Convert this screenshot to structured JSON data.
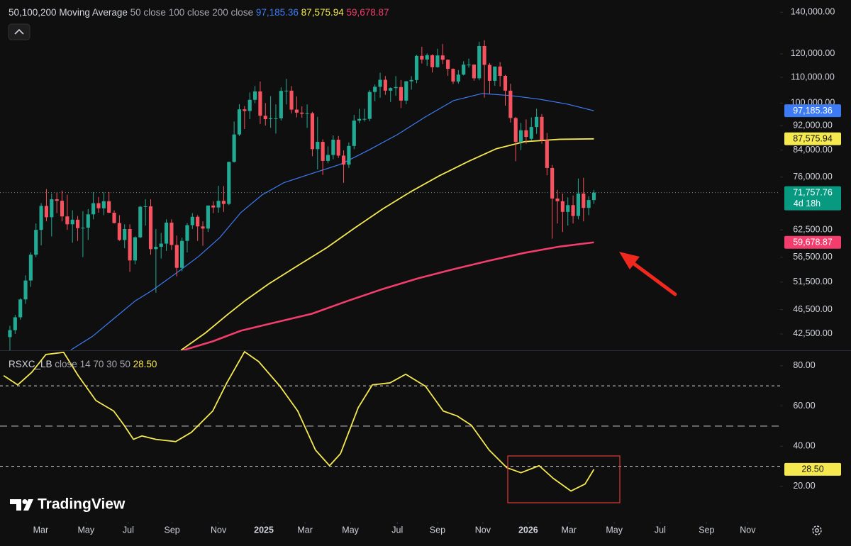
{
  "chart_data": [
    {
      "type": "candlestick",
      "title": "50,100,200 Moving Average",
      "log_scale": true,
      "grid": false,
      "up_color": "#22ab94",
      "down_color": "#f7525f",
      "ylim": [
        40000,
        146500
      ],
      "yticks": [
        {
          "value": 140000,
          "label": "140,000.00"
        },
        {
          "value": 120000,
          "label": "120,000.00"
        },
        {
          "value": 110000,
          "label": "110,000.00"
        },
        {
          "value": 100000,
          "label": "100,000.00"
        },
        {
          "value": 92000,
          "label": "92,000.00"
        },
        {
          "value": 84000,
          "label": "84,000.00"
        },
        {
          "value": 76000,
          "label": "76,000.00"
        },
        {
          "value": 62500,
          "label": "62,500.00"
        },
        {
          "value": 56500,
          "label": "56,500.00"
        },
        {
          "value": 51500,
          "label": "51,500.00"
        },
        {
          "value": 46500,
          "label": "46,500.00"
        },
        {
          "value": 42500,
          "label": "42,500.00"
        }
      ],
      "xlim": [
        -1.9,
        147.7
      ],
      "xticks": [
        {
          "value": 5.9,
          "label": "Mar"
        },
        {
          "value": 14.6,
          "label": "May"
        },
        {
          "value": 22.7,
          "label": "Jul"
        },
        {
          "value": 31.1,
          "label": "Sep"
        },
        {
          "value": 40,
          "label": "Nov"
        },
        {
          "value": 48.7,
          "label": "2025"
        },
        {
          "value": 56.6,
          "label": "Mar"
        },
        {
          "value": 65.3,
          "label": "May"
        },
        {
          "value": 74.3,
          "label": "Jul"
        },
        {
          "value": 82,
          "label": "Sep"
        },
        {
          "value": 90.7,
          "label": "Nov"
        },
        {
          "value": 99.4,
          "label": "2026"
        },
        {
          "value": 107.2,
          "label": "Mar"
        },
        {
          "value": 115.9,
          "label": "May"
        },
        {
          "value": 124.7,
          "label": "Jul"
        },
        {
          "value": 133.6,
          "label": "Sep"
        },
        {
          "value": 141.5,
          "label": "Nov"
        }
      ],
      "ohlc": [
        [
          42000,
          43800,
          39500,
          43100
        ],
        [
          43100,
          45600,
          42500,
          45200
        ],
        [
          45200,
          48500,
          44800,
          48300
        ],
        [
          48300,
          52800,
          47500,
          51800
        ],
        [
          51800,
          57500,
          50600,
          57000
        ],
        [
          57000,
          64000,
          56500,
          62500
        ],
        [
          62500,
          69000,
          59000,
          68300
        ],
        [
          68300,
          72700,
          64500,
          65500
        ],
        [
          65500,
          71500,
          61000,
          70000
        ],
        [
          70000,
          71800,
          66500,
          69600
        ],
        [
          69600,
          72300,
          64500,
          65700
        ],
        [
          65700,
          71200,
          62500,
          63800
        ],
        [
          63800,
          67200,
          59600,
          64900
        ],
        [
          64900,
          65800,
          60000,
          62900
        ],
        [
          62900,
          67000,
          56500,
          63000
        ],
        [
          63000,
          67500,
          60200,
          66200
        ],
        [
          66200,
          71900,
          65000,
          69000
        ],
        [
          69000,
          70600,
          66600,
          67700
        ],
        [
          67700,
          71900,
          66000,
          69500
        ],
        [
          69500,
          71900,
          66500,
          66600
        ],
        [
          66600,
          67200,
          64000,
          64100
        ],
        [
          64100,
          66000,
          60000,
          60200
        ],
        [
          60200,
          63800,
          58400,
          62700
        ],
        [
          62700,
          63800,
          53500,
          55800
        ],
        [
          55800,
          61000,
          55000,
          60800
        ],
        [
          60800,
          68300,
          60600,
          68100
        ],
        [
          68100,
          70000,
          63500,
          68200
        ],
        [
          68200,
          70000,
          57000,
          58200
        ],
        [
          58200,
          62700,
          49500,
          58700
        ],
        [
          58700,
          61800,
          56200,
          59400
        ],
        [
          59400,
          65000,
          57800,
          64200
        ],
        [
          64200,
          65000,
          58000,
          59100
        ],
        [
          59100,
          61200,
          52600,
          54300
        ],
        [
          54300,
          60700,
          53600,
          60000
        ],
        [
          60000,
          64100,
          57500,
          63600
        ],
        [
          63600,
          66500,
          62700,
          65600
        ],
        [
          65600,
          66000,
          60000,
          63300
        ],
        [
          63300,
          64500,
          58900,
          62800
        ],
        [
          62800,
          68400,
          62000,
          68400
        ],
        [
          68400,
          69500,
          66500,
          67900
        ],
        [
          67900,
          73600,
          66600,
          69600
        ],
        [
          69600,
          73500,
          66800,
          68800
        ],
        [
          68800,
          80500,
          68500,
          80400
        ],
        [
          80400,
          93400,
          80200,
          89000
        ],
        [
          89000,
          99600,
          88500,
          97700
        ],
        [
          97700,
          98900,
          90800,
          97100
        ],
        [
          97100,
          104000,
          94200,
          101200
        ],
        [
          101200,
          106500,
          99900,
          104400
        ],
        [
          104400,
          108300,
          92500,
          95400
        ],
        [
          95400,
          100000,
          92000,
          94200
        ],
        [
          94200,
          102600,
          91200,
          94500
        ],
        [
          94500,
          99500,
          89300,
          94500
        ],
        [
          94500,
          106000,
          93700,
          104600
        ],
        [
          104600,
          109400,
          99500,
          104700
        ],
        [
          104700,
          106500,
          96200,
          97600
        ],
        [
          97600,
          102500,
          94800,
          96500
        ],
        [
          96500,
          98800,
          94700,
          96100
        ],
        [
          96100,
          99500,
          91200,
          96300
        ],
        [
          96300,
          96800,
          82100,
          84300
        ],
        [
          84300,
          95000,
          78200,
          86600
        ],
        [
          86600,
          87400,
          76600,
          80700
        ],
        [
          80700,
          85200,
          80000,
          82500
        ],
        [
          82500,
          88700,
          81200,
          87300
        ],
        [
          87300,
          88500,
          81600,
          82300
        ],
        [
          82300,
          83900,
          74400,
          79600
        ],
        [
          79600,
          86400,
          78600,
          85300
        ],
        [
          85300,
          95700,
          84300,
          93700
        ],
        [
          93700,
          97900,
          92800,
          94300
        ],
        [
          94300,
          97900,
          93400,
          94300
        ],
        [
          94300,
          104900,
          93500,
          104200
        ],
        [
          104200,
          107100,
          100700,
          106200
        ],
        [
          106200,
          111900,
          102000,
          109000
        ],
        [
          109000,
          110500,
          103100,
          104700
        ],
        [
          104700,
          106000,
          100400,
          105700
        ],
        [
          105700,
          110500,
          102700,
          106100
        ],
        [
          106100,
          108900,
          98200,
          100900
        ],
        [
          100900,
          108500,
          99600,
          108400
        ],
        [
          108400,
          110500,
          105100,
          108900
        ],
        [
          108900,
          119500,
          107600,
          119100
        ],
        [
          119100,
          123200,
          115800,
          117500
        ],
        [
          117500,
          120200,
          114700,
          119400
        ],
        [
          119400,
          119800,
          112000,
          114200
        ],
        [
          114200,
          122300,
          114000,
          119300
        ],
        [
          119300,
          124500,
          115500,
          117400
        ],
        [
          117400,
          117600,
          110600,
          113500
        ],
        [
          113500,
          113700,
          107300,
          108300
        ],
        [
          108300,
          113000,
          107500,
          111100
        ],
        [
          111100,
          116800,
          110800,
          115300
        ],
        [
          115300,
          117900,
          114000,
          115300
        ],
        [
          115300,
          115400,
          108600,
          109600
        ],
        [
          109600,
          125500,
          108800,
          123500
        ],
        [
          123500,
          126200,
          102000,
          115200
        ],
        [
          115200,
          116000,
          103500,
          108600
        ],
        [
          108600,
          114000,
          106600,
          114500
        ],
        [
          114500,
          116400,
          106300,
          110600
        ],
        [
          110600,
          111000,
          99000,
          104700
        ],
        [
          104700,
          107400,
          93000,
          94600
        ],
        [
          94600,
          95000,
          80600,
          86600
        ],
        [
          86600,
          92900,
          84000,
          90400
        ],
        [
          90400,
          94100,
          86000,
          88200
        ],
        [
          87600,
          94800,
          87000,
          91500
        ],
        [
          91500,
          97900,
          89200,
          95000
        ],
        [
          95000,
          96000,
          86000,
          87200
        ],
        [
          87200,
          89500,
          76500,
          78600
        ],
        [
          78600,
          79500,
          60500,
          70200
        ],
        [
          70200,
          72500,
          64000,
          69500
        ],
        [
          69500,
          71500,
          62000,
          66800
        ],
        [
          66800,
          70500,
          63500,
          68500
        ],
        [
          68500,
          71000,
          64000,
          65800
        ],
        [
          65800,
          75600,
          65000,
          71500
        ],
        [
          71500,
          75800,
          64500,
          67800
        ],
        [
          67800,
          70800,
          66000,
          69800
        ],
        [
          69800,
          72500,
          68800,
          71757.76
        ]
      ],
      "last_price_label": "71,757.76",
      "countdown": "4d 18h",
      "last_price_color": "#089981",
      "series": [
        {
          "name": "50 close",
          "color": "#3d7bf5",
          "last_label": "97,185.36",
          "x": [
            11.7,
            15.8,
            19.9,
            24,
            27.3,
            32.1,
            36.2,
            40.3,
            44.3,
            48.4,
            52.5,
            57.9,
            63.4,
            68.8,
            74.3,
            79.7,
            85.1,
            90.6,
            96,
            101.5,
            106.9,
            112
          ],
          "values": [
            40070,
            42100,
            44960,
            48010,
            49950,
            53400,
            56650,
            60800,
            66660,
            71190,
            74420,
            77010,
            79690,
            83990,
            88950,
            95010,
            100930,
            103600,
            102800,
            101450,
            99600,
            97185.36
          ]
        },
        {
          "name": "100 close",
          "color": "#f5e94f",
          "last_label": "87,575.94",
          "x": [
            32.8,
            37.5,
            41.6,
            45,
            49.8,
            55.2,
            60.7,
            66.1,
            71.5,
            77,
            82.4,
            87.9,
            93.3,
            98.7,
            105.5,
            112
          ],
          "values": [
            40000,
            42660,
            45560,
            48010,
            51270,
            54740,
            58450,
            62920,
            67540,
            72100,
            76410,
            80530,
            84430,
            86670,
            87430,
            87575.94
          ]
        },
        {
          "name": "200 close",
          "color": "#f23d6d",
          "last_label": "59,678.87",
          "x": [
            33.2,
            38.9,
            44.3,
            51.1,
            57.9,
            64.7,
            71.5,
            78.3,
            85.1,
            91.9,
            98.7,
            105.5,
            112
          ],
          "values": [
            40000,
            41350,
            43010,
            44390,
            45800,
            48010,
            50200,
            52230,
            54030,
            55760,
            57400,
            58760,
            59678.87
          ]
        }
      ]
    },
    {
      "type": "line",
      "title": "RSXC_LB",
      "params": "close 14 70 30 50",
      "color": "#f5e94f",
      "ylim": [
        2.7,
        87.7
      ],
      "yticks": [
        {
          "value": 80,
          "label": "80.00"
        },
        {
          "value": 60,
          "label": "60.00"
        },
        {
          "value": 40,
          "label": "40.00"
        },
        {
          "value": 20,
          "label": "20.00"
        }
      ],
      "levels": [
        70,
        50,
        30
      ],
      "last_label": "28.50",
      "x": [
        -1.2,
        1.5,
        4.2,
        6.9,
        10.3,
        13.1,
        16.5,
        19.9,
        21.9,
        23.7,
        25.3,
        28,
        31.8,
        34.8,
        38.9,
        41.6,
        45,
        47.7,
        51.8,
        55.2,
        58.6,
        61.3,
        63.4,
        66.8,
        69.5,
        72.9,
        75.9,
        79.7,
        83.1,
        85.8,
        88.5,
        91.9,
        95.3,
        98,
        101.5,
        104.2,
        107.6,
        110.3,
        112
      ],
      "values": [
        75.1,
        70.5,
        76.8,
        85.6,
        86.7,
        75.1,
        62.7,
        57.5,
        50.4,
        43.4,
        45.1,
        43.4,
        42.3,
        46.9,
        57.5,
        71.5,
        87,
        82.1,
        69.8,
        57.5,
        38.1,
        30.3,
        36.3,
        59.2,
        70.5,
        71.5,
        75.8,
        69.8,
        57.5,
        55,
        50.4,
        38.1,
        29.3,
        26.8,
        30.3,
        24,
        17.7,
        21.2,
        28.5
      ]
    }
  ],
  "watermark": "TradingView"
}
